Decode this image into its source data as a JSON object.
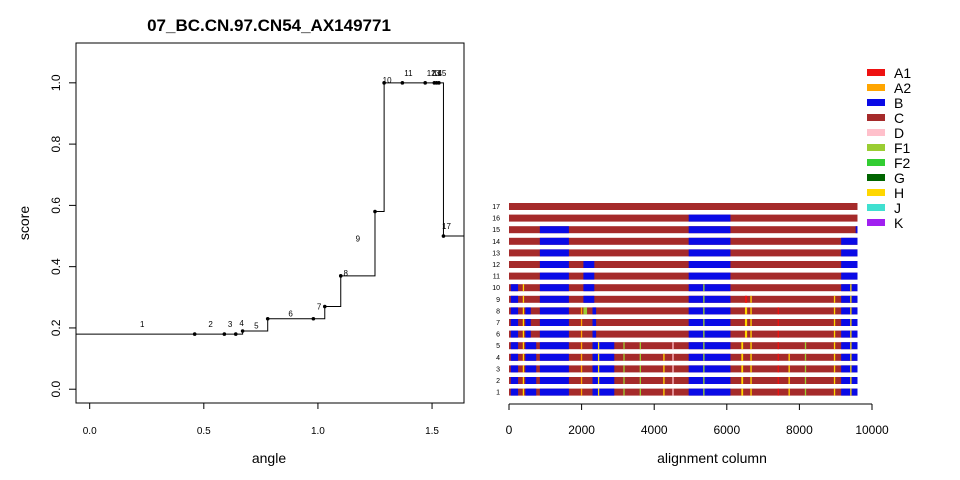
{
  "chart_data": [
    {
      "type": "line",
      "step": true,
      "title": "07_BC.CN.97.CN54_AX149771",
      "xlabel": "angle",
      "ylabel": "score",
      "xlim": [
        -0.06,
        1.64
      ],
      "ylim": [
        -0.045,
        1.13
      ],
      "x_ticks": [
        "0.0",
        "0.5",
        "1.0",
        "1.5"
      ],
      "x_tick_values": [
        0,
        0.5,
        1.0,
        1.5
      ],
      "y_ticks": [
        "0.0",
        "0.2",
        "0.4",
        "0.6",
        "0.8",
        "1.0"
      ],
      "y_tick_values": [
        0,
        0.2,
        0.4,
        0.6,
        0.8,
        1.0
      ],
      "start": {
        "x": -0.06,
        "y": 0.18
      },
      "end_x": 1.64,
      "points": [
        {
          "label": "1",
          "x": 0.46,
          "y": 0.18
        },
        {
          "label": "2",
          "x": 0.59,
          "y": 0.18
        },
        {
          "label": "3",
          "x": 0.64,
          "y": 0.18
        },
        {
          "label": "4",
          "x": 0.67,
          "y": 0.19
        },
        {
          "label": "5",
          "x": 0.78,
          "y": 0.23
        },
        {
          "label": "6",
          "x": 0.98,
          "y": 0.23
        },
        {
          "label": "7",
          "x": 1.03,
          "y": 0.27
        },
        {
          "label": "8",
          "x": 1.1,
          "y": 0.37
        },
        {
          "label": "9",
          "x": 1.25,
          "y": 0.58
        },
        {
          "label": "10",
          "x": 1.29,
          "y": 1.0
        },
        {
          "label": "11",
          "x": 1.37,
          "y": 1.0
        },
        {
          "label": "12",
          "x": 1.47,
          "y": 1.0
        },
        {
          "label": "13",
          "x": 1.51,
          "y": 1.0
        },
        {
          "label": "14",
          "x": 1.52,
          "y": 1.0
        },
        {
          "label": "15",
          "x": 1.53,
          "y": 1.0
        },
        {
          "label": "17",
          "x": 1.55,
          "y": 0.5
        }
      ]
    },
    {
      "type": "heatmap",
      "xlabel": "alignment column",
      "xlim": [
        0,
        10000
      ],
      "x_ticks": [
        "0",
        "2000",
        "4000",
        "6000",
        "8000",
        "10000"
      ],
      "x_tick_values": [
        0,
        2000,
        4000,
        6000,
        8000,
        10000
      ],
      "alignment_length": 9600,
      "rows": [
        "1",
        "2",
        "3",
        "4",
        "5",
        "6",
        "7",
        "8",
        "9",
        "10",
        "11",
        "12",
        "13",
        "14",
        "15",
        "16",
        "17"
      ],
      "rows_bottom_to_top": true,
      "legend": [
        {
          "label": "A1",
          "color": "#ee1111"
        },
        {
          "label": "A2",
          "color": "#ffa500"
        },
        {
          "label": "B",
          "color": "#0a0ae6"
        },
        {
          "label": "C",
          "color": "#a52a2a"
        },
        {
          "label": "D",
          "color": "#ffc0cb"
        },
        {
          "label": "F1",
          "color": "#9acd32"
        },
        {
          "label": "F2",
          "color": "#32cd32"
        },
        {
          "label": "G",
          "color": "#006400"
        },
        {
          "label": "H",
          "color": "#ffd700"
        },
        {
          "label": "J",
          "color": "#40e0d0"
        },
        {
          "label": "K",
          "color": "#a020f0"
        }
      ],
      "base_subtype": "C",
      "segments": {
        "17": [],
        "16": [
          {
            "s": 4950,
            "e": 6100,
            "t": "B"
          }
        ],
        "15": [
          {
            "s": 850,
            "e": 1650,
            "t": "B"
          },
          {
            "s": 4950,
            "e": 6100,
            "t": "B"
          },
          {
            "s": 9550,
            "e": 9600,
            "t": "B"
          }
        ],
        "14": [
          {
            "s": 850,
            "e": 1650,
            "t": "B"
          },
          {
            "s": 4950,
            "e": 6100,
            "t": "B"
          },
          {
            "s": 9150,
            "e": 9600,
            "t": "B"
          }
        ],
        "13": [
          {
            "s": 850,
            "e": 1650,
            "t": "B"
          },
          {
            "s": 4950,
            "e": 6100,
            "t": "B"
          },
          {
            "s": 9150,
            "e": 9600,
            "t": "B"
          }
        ],
        "12": [
          {
            "s": 850,
            "e": 1650,
            "t": "B"
          },
          {
            "s": 2050,
            "e": 2350,
            "t": "B"
          },
          {
            "s": 4950,
            "e": 6100,
            "t": "B"
          },
          {
            "s": 9150,
            "e": 9600,
            "t": "B"
          }
        ],
        "11": [
          {
            "s": 850,
            "e": 1650,
            "t": "B"
          },
          {
            "s": 2050,
            "e": 2350,
            "t": "B"
          },
          {
            "s": 4950,
            "e": 6100,
            "t": "B"
          },
          {
            "s": 9150,
            "e": 9600,
            "t": "B"
          }
        ],
        "10": [
          {
            "s": 50,
            "e": 250,
            "t": "B"
          },
          {
            "s": 850,
            "e": 1650,
            "t": "B"
          },
          {
            "s": 2050,
            "e": 2350,
            "t": "B"
          },
          {
            "s": 4950,
            "e": 6100,
            "t": "B"
          },
          {
            "s": 9150,
            "e": 9600,
            "t": "B"
          }
        ],
        "9": [
          {
            "s": 50,
            "e": 250,
            "t": "B"
          },
          {
            "s": 850,
            "e": 1650,
            "t": "B"
          },
          {
            "s": 2050,
            "e": 2350,
            "t": "B"
          },
          {
            "s": 4950,
            "e": 6100,
            "t": "B"
          },
          {
            "s": 6500,
            "e": 6560,
            "t": "A1"
          },
          {
            "s": 9150,
            "e": 9600,
            "t": "B"
          }
        ],
        "8": [
          {
            "s": 50,
            "e": 250,
            "t": "B"
          },
          {
            "s": 450,
            "e": 600,
            "t": "B"
          },
          {
            "s": 850,
            "e": 1650,
            "t": "B"
          },
          {
            "s": 2050,
            "e": 2150,
            "t": "F1"
          },
          {
            "s": 2300,
            "e": 2400,
            "t": "B"
          },
          {
            "s": 4950,
            "e": 6100,
            "t": "B"
          },
          {
            "s": 6500,
            "e": 6560,
            "t": "H"
          },
          {
            "s": 9150,
            "e": 9600,
            "t": "B"
          }
        ],
        "7": [
          {
            "s": 50,
            "e": 250,
            "t": "B"
          },
          {
            "s": 450,
            "e": 600,
            "t": "B"
          },
          {
            "s": 850,
            "e": 1650,
            "t": "B"
          },
          {
            "s": 2300,
            "e": 2400,
            "t": "B"
          },
          {
            "s": 4950,
            "e": 6100,
            "t": "B"
          },
          {
            "s": 6500,
            "e": 6560,
            "t": "H"
          },
          {
            "s": 9150,
            "e": 9600,
            "t": "B"
          }
        ],
        "6": [
          {
            "s": 50,
            "e": 250,
            "t": "B"
          },
          {
            "s": 450,
            "e": 600,
            "t": "B"
          },
          {
            "s": 850,
            "e": 1650,
            "t": "B"
          },
          {
            "s": 2300,
            "e": 2400,
            "t": "B"
          },
          {
            "s": 4950,
            "e": 6100,
            "t": "B"
          },
          {
            "s": 6500,
            "e": 6560,
            "t": "H"
          },
          {
            "s": 9150,
            "e": 9600,
            "t": "B"
          }
        ],
        "5": [
          {
            "s": 50,
            "e": 250,
            "t": "B"
          },
          {
            "s": 450,
            "e": 750,
            "t": "B"
          },
          {
            "s": 850,
            "e": 1650,
            "t": "B"
          },
          {
            "s": 2300,
            "e": 2900,
            "t": "B"
          },
          {
            "s": 4950,
            "e": 6100,
            "t": "B"
          },
          {
            "s": 6400,
            "e": 6450,
            "t": "H"
          },
          {
            "s": 9150,
            "e": 9600,
            "t": "B"
          }
        ],
        "4": [
          {
            "s": 50,
            "e": 250,
            "t": "B"
          },
          {
            "s": 450,
            "e": 750,
            "t": "B"
          },
          {
            "s": 850,
            "e": 1650,
            "t": "B"
          },
          {
            "s": 2300,
            "e": 2900,
            "t": "B"
          },
          {
            "s": 4950,
            "e": 6100,
            "t": "B"
          },
          {
            "s": 6400,
            "e": 6450,
            "t": "H"
          },
          {
            "s": 9150,
            "e": 9600,
            "t": "B"
          }
        ],
        "3": [
          {
            "s": 50,
            "e": 250,
            "t": "B"
          },
          {
            "s": 450,
            "e": 750,
            "t": "B"
          },
          {
            "s": 850,
            "e": 1650,
            "t": "B"
          },
          {
            "s": 2300,
            "e": 2900,
            "t": "B"
          },
          {
            "s": 4950,
            "e": 6100,
            "t": "B"
          },
          {
            "s": 6400,
            "e": 6450,
            "t": "H"
          },
          {
            "s": 9150,
            "e": 9600,
            "t": "B"
          }
        ],
        "2": [
          {
            "s": 50,
            "e": 250,
            "t": "B"
          },
          {
            "s": 450,
            "e": 750,
            "t": "B"
          },
          {
            "s": 850,
            "e": 1650,
            "t": "B"
          },
          {
            "s": 2300,
            "e": 2900,
            "t": "B"
          },
          {
            "s": 4950,
            "e": 6100,
            "t": "B"
          },
          {
            "s": 6400,
            "e": 6450,
            "t": "H"
          },
          {
            "s": 9150,
            "e": 9600,
            "t": "B"
          }
        ],
        "1": [
          {
            "s": 50,
            "e": 250,
            "t": "B"
          },
          {
            "s": 450,
            "e": 750,
            "t": "B"
          },
          {
            "s": 850,
            "e": 1650,
            "t": "B"
          },
          {
            "s": 2300,
            "e": 2900,
            "t": "B"
          },
          {
            "s": 4950,
            "e": 6100,
            "t": "B"
          },
          {
            "s": 6400,
            "e": 6450,
            "t": "H"
          },
          {
            "s": 9150,
            "e": 9600,
            "t": "B"
          }
        ]
      },
      "thin_marks": [
        {
          "x": 380,
          "t": "H",
          "rows_from": 1,
          "rows_to": 10
        },
        {
          "x": 1980,
          "t": "A2",
          "rows_from": 1,
          "rows_to": 8
        },
        {
          "x": 2450,
          "t": "H",
          "rows_from": 1,
          "rows_to": 5
        },
        {
          "x": 3150,
          "t": "F1",
          "rows_from": 1,
          "rows_to": 5
        },
        {
          "x": 3600,
          "t": "F1",
          "rows_from": 1,
          "rows_to": 5
        },
        {
          "x": 4250,
          "t": "H",
          "rows_from": 1,
          "rows_to": 4
        },
        {
          "x": 4500,
          "t": "D",
          "rows_from": 1,
          "rows_to": 5
        },
        {
          "x": 5350,
          "t": "F1",
          "rows_from": 1,
          "rows_to": 10
        },
        {
          "x": 6650,
          "t": "H",
          "rows_from": 1,
          "rows_to": 9
        },
        {
          "x": 7400,
          "t": "A1",
          "rows_from": 1,
          "rows_to": 8
        },
        {
          "x": 7700,
          "t": "H",
          "rows_from": 1,
          "rows_to": 4
        },
        {
          "x": 8150,
          "t": "F1",
          "rows_from": 1,
          "rows_to": 5
        },
        {
          "x": 8950,
          "t": "H",
          "rows_from": 1,
          "rows_to": 9
        },
        {
          "x": 9400,
          "t": "H",
          "rows_from": 1,
          "rows_to": 10
        }
      ]
    }
  ]
}
